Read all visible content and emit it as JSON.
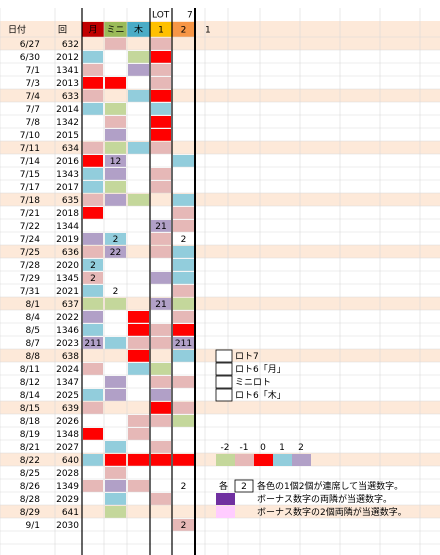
{
  "header": {
    "lot": "LOT",
    "lot_number": "7",
    "date": "日付",
    "round": "回",
    "extra": "1",
    "columns": [
      {
        "label": "月",
        "color": "#c00000",
        "text": "#ffffff"
      },
      {
        "label": "ミニ",
        "color": "#9bbb59",
        "text": "#ffffff"
      },
      {
        "label": "木",
        "color": "#4bacc6",
        "text": "#ffffff"
      },
      {
        "label": "1",
        "color": "#ffc000",
        "text": "#000000"
      },
      {
        "label": "2",
        "color": "#f79646",
        "text": "#000000"
      }
    ]
  },
  "shade_color": "#fde9d9",
  "scale": {
    "values": [
      -2,
      -1,
      0,
      1,
      2
    ],
    "colors": [
      "#c4d79b",
      "#e6b8b7",
      "#ff0000",
      "#92cddc",
      "#b1a0c7"
    ]
  },
  "rows": [
    {
      "date": "6/27",
      "round": "632",
      "shaded": true,
      "cells": [
        null,
        -1,
        null,
        -1,
        null
      ]
    },
    {
      "date": "6/30",
      "round": "2012",
      "cells": [
        1,
        null,
        -2,
        0,
        null
      ]
    },
    {
      "date": "7/1",
      "round": "1341",
      "cells": [
        -1,
        null,
        2,
        -1,
        null
      ]
    },
    {
      "date": "7/3",
      "round": "2013",
      "cells": [
        0,
        0,
        null,
        -1,
        null
      ]
    },
    {
      "date": "7/4",
      "round": "633",
      "shaded": true,
      "cells": [
        -1,
        null,
        1,
        0,
        null
      ]
    },
    {
      "date": "7/7",
      "round": "2014",
      "cells": [
        1,
        -2,
        null,
        1,
        null
      ]
    },
    {
      "date": "7/8",
      "round": "1342",
      "cells": [
        null,
        -1,
        null,
        0,
        null
      ]
    },
    {
      "date": "7/10",
      "round": "2015",
      "cells": [
        null,
        2,
        null,
        0,
        null
      ]
    },
    {
      "date": "7/11",
      "round": "634",
      "shaded": true,
      "cells": [
        -1,
        -2,
        1,
        -1,
        null
      ]
    },
    {
      "date": "7/14",
      "round": "2016",
      "cells": [
        0,
        2,
        null,
        null,
        1
      ],
      "labels": [
        null,
        "12",
        null,
        null,
        null
      ]
    },
    {
      "date": "7/15",
      "round": "1343",
      "cells": [
        1,
        2,
        null,
        -1,
        null
      ]
    },
    {
      "date": "7/17",
      "round": "2017",
      "cells": [
        1,
        -2,
        null,
        -1,
        null
      ]
    },
    {
      "date": "7/18",
      "round": "635",
      "shaded": true,
      "cells": [
        -1,
        2,
        -2,
        null,
        1
      ]
    },
    {
      "date": "7/21",
      "round": "2018",
      "cells": [
        0,
        null,
        null,
        null,
        -1
      ]
    },
    {
      "date": "7/22",
      "round": "1344",
      "cells": [
        null,
        null,
        null,
        2,
        -1
      ],
      "labels": [
        null,
        null,
        null,
        "21",
        null
      ]
    },
    {
      "date": "7/24",
      "round": "2019",
      "cells": [
        2,
        1,
        null,
        -1,
        null
      ],
      "labels": [
        null,
        "2",
        null,
        null,
        "2"
      ]
    },
    {
      "date": "7/25",
      "round": "636",
      "shaded": true,
      "cells": [
        -1,
        2,
        null,
        -1,
        1
      ],
      "labels": [
        null,
        "22",
        null,
        null,
        null
      ]
    },
    {
      "date": "7/28",
      "round": "2020",
      "cells": [
        1,
        null,
        null,
        null,
        1
      ],
      "labels": [
        "2",
        null,
        null,
        null,
        null
      ]
    },
    {
      "date": "7/29",
      "round": "1345",
      "cells": [
        -1,
        null,
        null,
        2,
        1
      ],
      "labels": [
        "2",
        null,
        null,
        null,
        null
      ]
    },
    {
      "date": "7/31",
      "round": "2021",
      "cells": [
        1,
        null,
        null,
        null,
        -1
      ],
      "labels": [
        null,
        "2",
        null,
        null,
        null
      ]
    },
    {
      "date": "8/1",
      "round": "637",
      "shaded": true,
      "cells": [
        -2,
        -2,
        null,
        2,
        -2
      ],
      "labels": [
        null,
        null,
        null,
        "21",
        null
      ]
    },
    {
      "date": "8/4",
      "round": "2022",
      "cells": [
        2,
        null,
        0,
        null,
        -1
      ]
    },
    {
      "date": "8/5",
      "round": "1346",
      "cells": [
        1,
        null,
        0,
        -1,
        0
      ]
    },
    {
      "date": "8/7",
      "round": "2023",
      "cells": [
        2,
        1,
        -1,
        -1,
        2
      ],
      "labels": [
        "211",
        null,
        null,
        null,
        "211"
      ]
    },
    {
      "date": "8/8",
      "round": "638",
      "shaded": true,
      "cells": [
        null,
        null,
        0,
        null,
        1
      ]
    },
    {
      "date": "8/11",
      "round": "2024",
      "cells": [
        -1,
        null,
        1,
        -2,
        null
      ]
    },
    {
      "date": "8/12",
      "round": "1347",
      "cells": [
        null,
        2,
        null,
        -1,
        -1
      ]
    },
    {
      "date": "8/14",
      "round": "2025",
      "cells": [
        1,
        2,
        null,
        2,
        null
      ]
    },
    {
      "date": "8/15",
      "round": "639",
      "shaded": true,
      "cells": [
        -1,
        null,
        null,
        0,
        -1
      ]
    },
    {
      "date": "8/18",
      "round": "2026",
      "cells": [
        null,
        null,
        -1,
        -1,
        -2
      ]
    },
    {
      "date": "8/19",
      "round": "1348",
      "cells": [
        0,
        null,
        -1,
        null,
        null
      ]
    },
    {
      "date": "8/21",
      "round": "2027",
      "cells": [
        null,
        1,
        null,
        -1,
        null
      ]
    },
    {
      "date": "8/22",
      "round": "640",
      "shaded": true,
      "cells": [
        1,
        0,
        0,
        0,
        0
      ]
    },
    {
      "date": "8/25",
      "round": "2028",
      "cells": [
        null,
        -1,
        null,
        null,
        null
      ]
    },
    {
      "date": "8/26",
      "round": "1349",
      "cells": [
        -1,
        2,
        -1,
        null,
        null
      ],
      "labels": [
        null,
        null,
        null,
        null,
        "2"
      ]
    },
    {
      "date": "8/28",
      "round": "2029",
      "cells": [
        null,
        1,
        null,
        -1,
        null
      ]
    },
    {
      "date": "8/29",
      "round": "641",
      "shaded": true,
      "cells": [
        null,
        -2,
        null,
        null,
        null
      ]
    },
    {
      "date": "9/1",
      "round": "2030",
      "cells": [
        null,
        null,
        null,
        null,
        -1
      ],
      "labels": [
        null,
        null,
        null,
        null,
        "2"
      ]
    }
  ],
  "legend": [
    "ロト7",
    "ロト6「月」",
    "ミニロト",
    "ロト6「木」"
  ],
  "notes": {
    "prefix": "各",
    "box": "2",
    "items": [
      {
        "text": "各色の1個2個が連席して当選数字。"
      },
      {
        "color": "#7030a0",
        "text": "ボーナス数字の両隣が当選数字。"
      },
      {
        "color": "#ffccff",
        "text": "ボーナス数字の2個両隣が当選数字。"
      }
    ]
  }
}
